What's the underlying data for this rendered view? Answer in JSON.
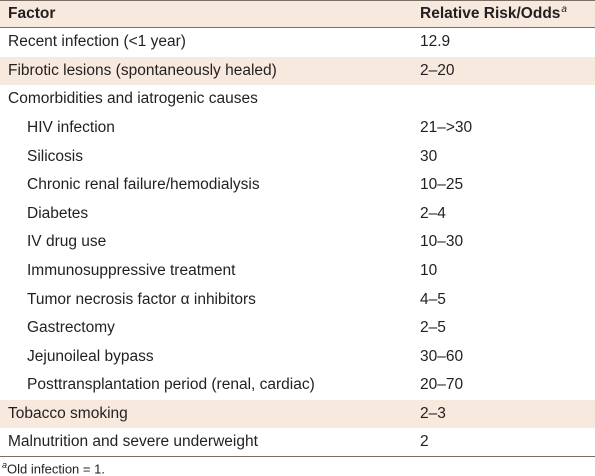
{
  "table": {
    "header": {
      "factor": "Factor",
      "value": "Relative Risk/Odds",
      "value_superscript": "a"
    },
    "rows": [
      {
        "factor": "Recent infection (<1 year)",
        "value": "12.9",
        "indent": false,
        "shaded": false
      },
      {
        "factor": "Fibrotic lesions (spontaneously healed)",
        "value": "2–20",
        "indent": false,
        "shaded": true
      },
      {
        "factor": "Comorbidities and iatrogenic causes",
        "value": "",
        "indent": false,
        "shaded": false
      },
      {
        "factor": "HIV infection",
        "value": "21–>30",
        "indent": true,
        "shaded": false
      },
      {
        "factor": "Silicosis",
        "value": "30",
        "indent": true,
        "shaded": false
      },
      {
        "factor": "Chronic renal failure/hemodialysis",
        "value": "10–25",
        "indent": true,
        "shaded": false
      },
      {
        "factor": "Diabetes",
        "value": "2–4",
        "indent": true,
        "shaded": false
      },
      {
        "factor": "IV drug use",
        "value": "10–30",
        "indent": true,
        "shaded": false
      },
      {
        "factor": "Immunosuppressive treatment",
        "value": "10",
        "indent": true,
        "shaded": false
      },
      {
        "factor": "Tumor necrosis factor α inhibitors",
        "value": "4–5",
        "indent": true,
        "shaded": false
      },
      {
        "factor": "Gastrectomy",
        "value": "2–5",
        "indent": true,
        "shaded": false
      },
      {
        "factor": "Jejunoileal bypass",
        "value": "30–60",
        "indent": true,
        "shaded": false
      },
      {
        "factor": "Posttransplantation period (renal, cardiac)",
        "value": "20–70",
        "indent": true,
        "shaded": false
      },
      {
        "factor": "Tobacco smoking",
        "value": "2–3",
        "indent": false,
        "shaded": true
      },
      {
        "factor": "Malnutrition and severe underweight",
        "value": "2",
        "indent": false,
        "shaded": false
      }
    ],
    "footnote": {
      "superscript": "a",
      "text": "Old infection = 1."
    }
  }
}
